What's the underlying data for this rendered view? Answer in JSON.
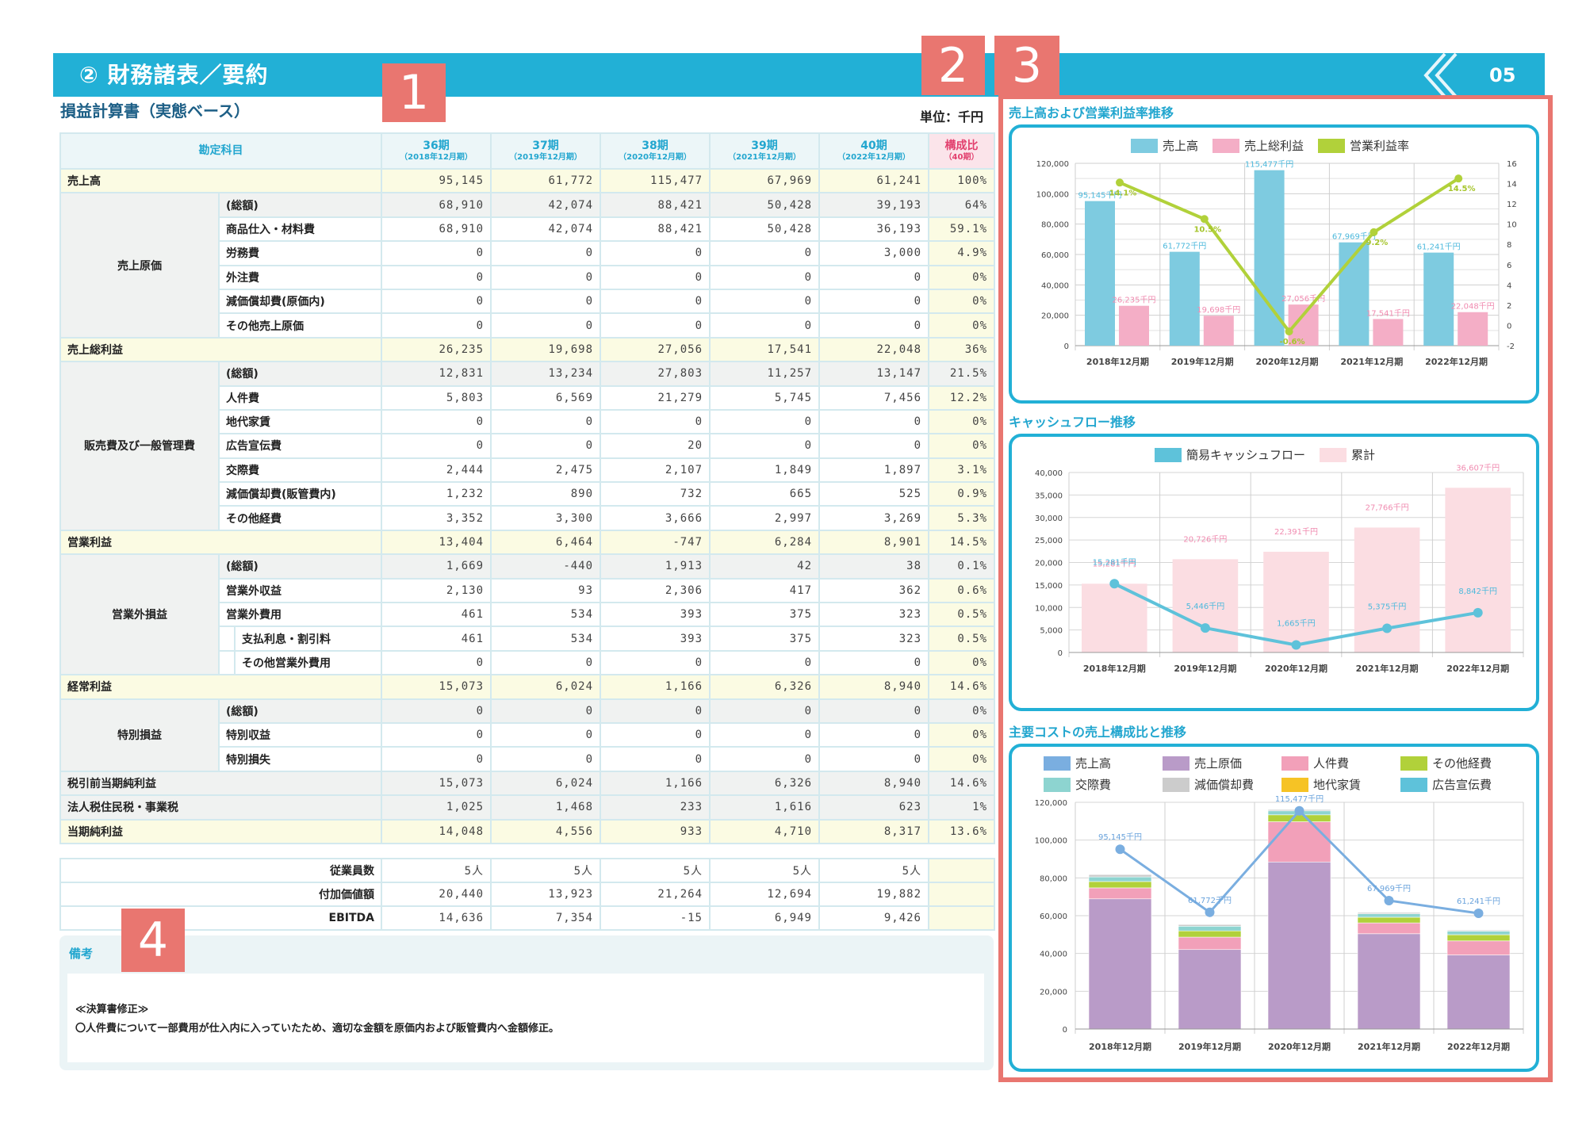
{
  "header": {
    "title": "② 財務諸表／要約",
    "page_number": "05",
    "nav_icon": "double-chevron-left-icon",
    "bar_color": "#22b0d6"
  },
  "badges": [
    "1",
    "2",
    "3",
    "4"
  ],
  "badge_color": "#e97670",
  "statement": {
    "title": "損益計算書（実態ベース）",
    "unit": "単位：千円",
    "header_account": "勘定科目",
    "periods": [
      {
        "label": "36期",
        "sub": "（2018年12月期）"
      },
      {
        "label": "37期",
        "sub": "（2019年12月期）"
      },
      {
        "label": "38期",
        "sub": "（2020年12月期）"
      },
      {
        "label": "39期",
        "sub": "（2021年12月期）"
      },
      {
        "label": "40期",
        "sub": "（2022年12月期）"
      }
    ],
    "ratio_header": {
      "label": "構成比",
      "sub": "（40期）"
    },
    "rows": [
      {
        "type": "total",
        "label": "売上高",
        "values": [
          "95,145",
          "61,772",
          "115,477",
          "67,969",
          "61,241"
        ],
        "ratio": "100%"
      },
      {
        "type": "sum",
        "group": "売上原価",
        "label": "(総額)",
        "values": [
          "68,910",
          "42,074",
          "88,421",
          "50,428",
          "39,193"
        ],
        "ratio": "64%"
      },
      {
        "type": "item",
        "label": "商品仕入・材料費",
        "values": [
          "68,910",
          "42,074",
          "88,421",
          "50,428",
          "36,193"
        ],
        "ratio": "59.1%"
      },
      {
        "type": "item",
        "label": "労務費",
        "values": [
          "0",
          "0",
          "0",
          "0",
          "3,000"
        ],
        "ratio": "4.9%"
      },
      {
        "type": "item",
        "label": "外注費",
        "values": [
          "0",
          "0",
          "0",
          "0",
          "0"
        ],
        "ratio": "0%"
      },
      {
        "type": "item",
        "label": "減価償却費(原価内)",
        "values": [
          "0",
          "0",
          "0",
          "0",
          "0"
        ],
        "ratio": "0%"
      },
      {
        "type": "item",
        "label": "その他売上原価",
        "values": [
          "0",
          "0",
          "0",
          "0",
          "0"
        ],
        "ratio": "0%"
      },
      {
        "type": "total",
        "label": "売上総利益",
        "values": [
          "26,235",
          "19,698",
          "27,056",
          "17,541",
          "22,048"
        ],
        "ratio": "36%"
      },
      {
        "type": "sum",
        "group": "販売費及び一般管理費",
        "label": "(総額)",
        "values": [
          "12,831",
          "13,234",
          "27,803",
          "11,257",
          "13,147"
        ],
        "ratio": "21.5%"
      },
      {
        "type": "item",
        "label": "人件費",
        "values": [
          "5,803",
          "6,569",
          "21,279",
          "5,745",
          "7,456"
        ],
        "ratio": "12.2%"
      },
      {
        "type": "item",
        "label": "地代家賃",
        "values": [
          "0",
          "0",
          "0",
          "0",
          "0"
        ],
        "ratio": "0%"
      },
      {
        "type": "item",
        "label": "広告宣伝費",
        "values": [
          "0",
          "0",
          "20",
          "0",
          "0"
        ],
        "ratio": "0%"
      },
      {
        "type": "item",
        "label": "交際費",
        "values": [
          "2,444",
          "2,475",
          "2,107",
          "1,849",
          "1,897"
        ],
        "ratio": "3.1%"
      },
      {
        "type": "item",
        "label": "減価償却費(販管費内)",
        "values": [
          "1,232",
          "890",
          "732",
          "665",
          "525"
        ],
        "ratio": "0.9%"
      },
      {
        "type": "item",
        "label": "その他経費",
        "values": [
          "3,352",
          "3,300",
          "3,666",
          "2,997",
          "3,269"
        ],
        "ratio": "5.3%"
      },
      {
        "type": "total",
        "label": "営業利益",
        "values": [
          "13,404",
          "6,464",
          "-747",
          "6,284",
          "8,901"
        ],
        "ratio": "14.5%"
      },
      {
        "type": "sum",
        "group": "営業外損益",
        "label": "(総額)",
        "values": [
          "1,669",
          "-440",
          "1,913",
          "42",
          "38"
        ],
        "ratio": "0.1%"
      },
      {
        "type": "item",
        "label": "営業外収益",
        "values": [
          "2,130",
          "93",
          "2,306",
          "417",
          "362"
        ],
        "ratio": "0.6%"
      },
      {
        "type": "item",
        "label": "営業外費用",
        "values": [
          "461",
          "534",
          "393",
          "375",
          "323"
        ],
        "ratio": "0.5%"
      },
      {
        "type": "subitem",
        "label": "支払利息・割引料",
        "values": [
          "461",
          "534",
          "393",
          "375",
          "323"
        ],
        "ratio": "0.5%"
      },
      {
        "type": "subitem",
        "label": "その他営業外費用",
        "values": [
          "0",
          "0",
          "0",
          "0",
          "0"
        ],
        "ratio": "0%"
      },
      {
        "type": "total",
        "label": "経常利益",
        "values": [
          "15,073",
          "6,024",
          "1,166",
          "6,326",
          "8,940"
        ],
        "ratio": "14.6%"
      },
      {
        "type": "sum",
        "group": "特別損益",
        "label": "(総額)",
        "values": [
          "0",
          "0",
          "0",
          "0",
          "0"
        ],
        "ratio": "0%"
      },
      {
        "type": "item",
        "label": "特別収益",
        "values": [
          "0",
          "0",
          "0",
          "0",
          "0"
        ],
        "ratio": "0%"
      },
      {
        "type": "item",
        "label": "特別損失",
        "values": [
          "0",
          "0",
          "0",
          "0",
          "0"
        ],
        "ratio": "0%"
      },
      {
        "type": "plain",
        "label": "税引前当期純利益",
        "values": [
          "15,073",
          "6,024",
          "1,166",
          "6,326",
          "8,940"
        ],
        "ratio": "14.6%"
      },
      {
        "type": "plain",
        "label": "法人税住民税・事業税",
        "values": [
          "1,025",
          "1,468",
          "233",
          "1,616",
          "623"
        ],
        "ratio": "1%"
      },
      {
        "type": "total",
        "label": "当期純利益",
        "values": [
          "14,048",
          "4,556",
          "933",
          "4,710",
          "8,317"
        ],
        "ratio": "13.6%"
      }
    ]
  },
  "extra": {
    "rows": [
      {
        "label": "従業員数",
        "values": [
          "5人",
          "5人",
          "5人",
          "5人",
          "5人"
        ]
      },
      {
        "label": "付加価値額",
        "values": [
          "20,440",
          "13,923",
          "21,264",
          "12,694",
          "19,882"
        ]
      },
      {
        "label": "EBITDA",
        "values": [
          "14,636",
          "7,354",
          "-15",
          "6,949",
          "9,426"
        ]
      }
    ]
  },
  "notes": {
    "title": "備考",
    "heading": "≪決算書修正≫",
    "body": "〇人件費について一部費用が仕入内に入っていたため、適切な金額を原価内および販管費内へ金額修正。"
  },
  "charts": {
    "sales": {
      "title": "売上高および営業利益率推移",
      "legend": [
        "売上高",
        "売上総利益",
        "営業利益率"
      ]
    },
    "cashflow": {
      "title": "キャッシュフロー推移",
      "legend": [
        "簡易キャッシュフロー",
        "累計"
      ]
    },
    "cost": {
      "title": "主要コストの売上構成比と推移",
      "legend": [
        "売上高",
        "売上原価",
        "人件費",
        "その他経費",
        "交際費",
        "減価償却費",
        "地代家賃",
        "広告宣伝費"
      ]
    }
  },
  "chart_data": [
    {
      "type": "bar",
      "title": "売上高および営業利益率推移",
      "categories": [
        "2018年12月期",
        "2019年12月期",
        "2020年12月期",
        "2021年12月期",
        "2022年12月期"
      ],
      "series": [
        {
          "name": "売上高",
          "kind": "bar",
          "axis": "left",
          "color": "#7ecbe0",
          "values": [
            95145,
            61772,
            115477,
            67969,
            61241
          ],
          "labels": [
            "95,145千円",
            "61,772千円",
            "115,477千円",
            "67,969千円",
            "61,241千円"
          ]
        },
        {
          "name": "売上総利益",
          "kind": "bar",
          "axis": "left",
          "color": "#f4aec6",
          "values": [
            26235,
            19698,
            27056,
            17541,
            22048
          ],
          "labels": [
            "26,235千円",
            "19,698千円",
            "27,056千円",
            "17,541千円",
            "22,048千円"
          ]
        },
        {
          "name": "営業利益率",
          "kind": "line",
          "axis": "right",
          "color": "#b1d13a",
          "values": [
            14.1,
            10.5,
            -0.6,
            9.2,
            14.5
          ],
          "labels": [
            "14.1%",
            "10.5%",
            "-0.6%",
            "9.2%",
            "14.5%"
          ]
        }
      ],
      "ylim": [
        0,
        120000
      ],
      "yticks": [
        "0",
        "20,000",
        "40,000",
        "60,000",
        "80,000",
        "100,000",
        "120,000"
      ],
      "y2lim": [
        -2,
        16
      ],
      "y2ticks": [
        "-2",
        "0",
        "2",
        "4",
        "6",
        "8",
        "10",
        "12",
        "14",
        "16"
      ],
      "legend_position": "top",
      "grid": true
    },
    {
      "type": "bar",
      "title": "キャッシュフロー推移",
      "categories": [
        "2018年12月期",
        "2019年12月期",
        "2020年12月期",
        "2021年12月期",
        "2022年12月期"
      ],
      "series": [
        {
          "name": "簡易キャッシュフロー",
          "kind": "line",
          "color": "#5ec2da",
          "values": [
            15281,
            5446,
            1665,
            5375,
            8842
          ],
          "labels": [
            "15,281千円",
            "5,446千円",
            "1,665千円",
            "5,375千円",
            "8,842千円"
          ]
        },
        {
          "name": "累計",
          "kind": "bar",
          "color": "#fbdde2",
          "values": [
            15281,
            20726,
            22391,
            27766,
            36607
          ],
          "labels": [
            "15,281千円",
            "20,726千円",
            "22,391千円",
            "27,766千円",
            "36,607千円"
          ]
        }
      ],
      "ylim": [
        0,
        40000
      ],
      "yticks": [
        "0",
        "5,000",
        "10,000",
        "15,000",
        "20,000",
        "25,000",
        "30,000",
        "35,000",
        "40,000"
      ],
      "legend_position": "top",
      "grid": true
    },
    {
      "type": "bar",
      "stacked": true,
      "title": "主要コストの売上構成比と推移",
      "categories": [
        "2018年12月期",
        "2019年12月期",
        "2020年12月期",
        "2021年12月期",
        "2022年12月期"
      ],
      "series": [
        {
          "name": "売上高",
          "kind": "line",
          "color": "#7aaee0",
          "values": [
            95145,
            61772,
            115477,
            67969,
            61241
          ],
          "labels": [
            "95,145千円",
            "61,772千円",
            "115,477千円",
            "67,969千円",
            "61,241千円"
          ]
        },
        {
          "name": "売上原価",
          "kind": "bar",
          "color": "#b99bc8",
          "values": [
            68910,
            42074,
            88421,
            50428,
            39193
          ]
        },
        {
          "name": "人件費",
          "kind": "bar",
          "color": "#f2a0b9",
          "values": [
            5803,
            6569,
            21279,
            5745,
            7456
          ]
        },
        {
          "name": "その他経費",
          "kind": "bar",
          "color": "#b1d13a",
          "values": [
            3352,
            3300,
            3666,
            2997,
            3269
          ]
        },
        {
          "name": "交際費",
          "kind": "bar",
          "color": "#8dd4d0",
          "values": [
            2444,
            2475,
            2107,
            1849,
            1897
          ]
        },
        {
          "name": "減価償却費",
          "kind": "bar",
          "color": "#cccccc",
          "values": [
            1232,
            890,
            732,
            665,
            525
          ]
        },
        {
          "name": "地代家賃",
          "kind": "bar",
          "color": "#f6c325",
          "values": [
            0,
            0,
            0,
            0,
            0
          ]
        },
        {
          "name": "広告宣伝費",
          "kind": "bar",
          "color": "#5ec2da",
          "values": [
            0,
            0,
            20,
            0,
            0
          ]
        }
      ],
      "ylim": [
        0,
        120000
      ],
      "yticks": [
        "0",
        "20,000",
        "40,000",
        "60,000",
        "80,000",
        "100,000",
        "120,000"
      ],
      "legend_position": "top",
      "grid": true
    }
  ]
}
